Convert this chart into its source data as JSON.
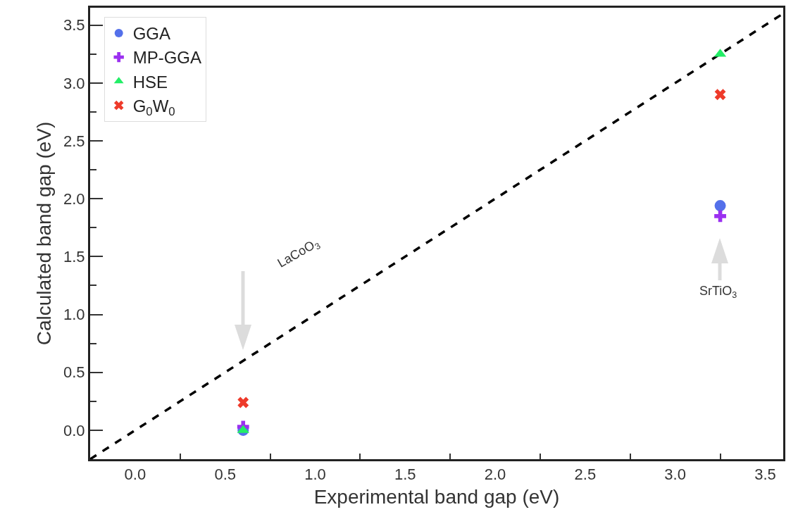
{
  "chart_data": {
    "type": "scatter",
    "xlabel": "Experimental band gap (eV)",
    "ylabel": "Calculated band gap (eV)",
    "x": [
      0.6,
      3.25
    ],
    "series": [
      {
        "name": "GGA",
        "color": "#5470ea",
        "marker": "circle",
        "values": [
          0.0,
          1.94
        ]
      },
      {
        "name": "MP-GGA",
        "color": "#9b30f0",
        "marker": "plus",
        "values": [
          0.03,
          1.85
        ]
      },
      {
        "name": "HSE",
        "color": "#22ee66",
        "marker": "triangle",
        "values": [
          0.0,
          3.25
        ]
      },
      {
        "name": "G$_{0}$W$_{0}$",
        "color": "#ee3a2a",
        "marker": "x",
        "values": [
          0.24,
          2.9
        ]
      },
      {
        "type": "line",
        "x": [
          -0.25,
          3.6
        ],
        "values": [
          -0.25,
          3.6
        ],
        "color": "#000000",
        "line_style": "dashed",
        "marker": "none"
      }
    ],
    "xlim": [
      -0.25,
      3.6
    ],
    "ylim": [
      -0.25,
      3.65
    ],
    "xticks": [
      {
        "value": 0,
        "label": "0.0"
      },
      0.5,
      {
        "value": 1,
        "label": "1.0"
      },
      1.5,
      {
        "value": 2,
        "label": "2.0"
      },
      2.5,
      {
        "value": 3,
        "label": "3.0"
      },
      3.5,
      {
        "value": 0.25,
        "label": null
      },
      {
        "value": 0.75,
        "label": null
      },
      {
        "value": 1.25,
        "label": null
      },
      {
        "value": 1.75,
        "label": null
      },
      {
        "value": 2.25,
        "label": null
      },
      {
        "value": 2.75,
        "label": null
      },
      {
        "value": 3.25,
        "label": null
      }
    ],
    "yticks": [
      {
        "value": 0,
        "label": "0.0"
      },
      0.5,
      {
        "value": 1,
        "label": "1.0"
      },
      1.5,
      {
        "value": 2,
        "label": "2.0"
      },
      2.5,
      {
        "value": 3,
        "label": "3.0"
      },
      3.5,
      {
        "value": -0.25,
        "label": null
      },
      {
        "value": 0.25,
        "label": null
      },
      {
        "value": 0.75,
        "label": null
      },
      {
        "value": 1.25,
        "label": null
      },
      {
        "value": 1.75,
        "label": null
      },
      {
        "value": 2.25,
        "label": null
      },
      {
        "value": 2.75,
        "label": null
      },
      {
        "value": 3.25,
        "label": null
      }
    ],
    "grid": false,
    "legend": "top left",
    "annotations": [
      "LaCoO$_{3}$",
      "SrTiO$_{3}$"
    ]
  }
}
